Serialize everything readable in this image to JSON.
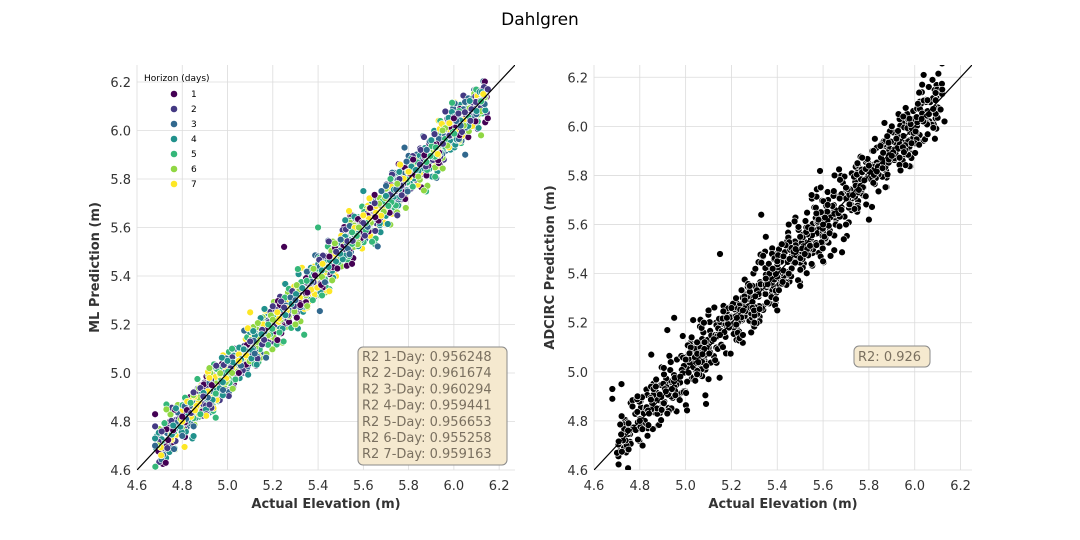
{
  "figure_title": "Dahlgren",
  "chart_data": [
    {
      "type": "scatter",
      "xlabel": "Actual Elevation (m)",
      "ylabel": "ML Prediction (m)",
      "xlim": [
        4.6,
        6.27
      ],
      "ylim": [
        4.6,
        6.27
      ],
      "xticks": [
        "4.6",
        "4.8",
        "5.0",
        "5.2",
        "5.4",
        "5.6",
        "5.8",
        "6.0",
        "6.2"
      ],
      "yticks": [
        "4.6",
        "4.8",
        "5.0",
        "5.2",
        "5.4",
        "5.6",
        "5.8",
        "6.0",
        "6.2"
      ],
      "grid": true,
      "reference_line": "y = x",
      "legend": {
        "title": "Horizon (days)",
        "placement": "top-left",
        "entries": [
          {
            "label": "1",
            "color": "#440154"
          },
          {
            "label": "2",
            "color": "#443983"
          },
          {
            "label": "3",
            "color": "#31688e"
          },
          {
            "label": "4",
            "color": "#21918c"
          },
          {
            "label": "5",
            "color": "#35b779"
          },
          {
            "label": "6",
            "color": "#90d743"
          },
          {
            "label": "7",
            "color": "#fde725"
          }
        ]
      },
      "annotation": {
        "placement": "bottom-right",
        "lines": [
          "R2 1-Day: 0.956248",
          "R2 2-Day: 0.961674",
          "R2 3-Day: 0.960294",
          "R2 4-Day: 0.959441",
          "R2 5-Day: 0.956653",
          "R2 6-Day: 0.955258",
          "R2 7-Day: 0.959163"
        ]
      },
      "sample_points": [
        [
          4.68,
          4.83
        ],
        [
          4.68,
          4.78
        ],
        [
          4.68,
          4.7
        ],
        [
          4.68,
          4.73
        ],
        [
          4.73,
          4.87
        ],
        [
          4.73,
          4.85
        ],
        [
          4.8,
          4.8
        ],
        [
          4.8,
          4.82
        ],
        [
          4.85,
          4.92
        ],
        [
          4.85,
          4.78
        ],
        [
          4.85,
          4.74
        ],
        [
          4.88,
          4.83
        ],
        [
          4.92,
          5.02
        ],
        [
          4.92,
          4.98
        ],
        [
          4.93,
          4.95
        ],
        [
          4.95,
          5.03
        ],
        [
          4.98,
          4.93
        ],
        [
          5.0,
          5.05
        ],
        [
          5.02,
          5.1
        ],
        [
          5.02,
          5.0
        ],
        [
          5.05,
          5.05
        ],
        [
          5.05,
          5.0
        ],
        [
          5.1,
          5.13
        ],
        [
          5.12,
          5.08
        ],
        [
          5.15,
          5.16
        ],
        [
          5.18,
          5.2
        ],
        [
          5.2,
          5.22
        ],
        [
          5.22,
          5.25
        ],
        [
          5.25,
          5.52
        ],
        [
          5.25,
          5.27
        ],
        [
          5.3,
          5.3
        ],
        [
          5.33,
          5.35
        ],
        [
          5.35,
          5.38
        ],
        [
          5.38,
          5.43
        ],
        [
          5.42,
          5.45
        ],
        [
          5.45,
          5.48
        ],
        [
          5.48,
          5.5
        ],
        [
          5.5,
          5.55
        ],
        [
          5.52,
          5.63
        ],
        [
          5.55,
          5.58
        ],
        [
          5.58,
          5.6
        ],
        [
          5.6,
          5.65
        ],
        [
          5.63,
          5.68
        ],
        [
          5.65,
          5.7
        ],
        [
          5.68,
          5.75
        ],
        [
          5.7,
          5.73
        ],
        [
          5.72,
          5.8
        ],
        [
          5.75,
          5.78
        ],
        [
          5.8,
          5.83
        ],
        [
          5.82,
          5.88
        ],
        [
          5.85,
          5.86
        ],
        [
          5.88,
          5.92
        ],
        [
          5.9,
          5.96
        ],
        [
          5.92,
          5.93
        ],
        [
          5.95,
          6.0
        ],
        [
          5.98,
          6.03
        ],
        [
          6.0,
          6.05
        ],
        [
          6.02,
          6.07
        ],
        [
          6.03,
          6.02
        ],
        [
          6.1,
          6.08
        ],
        [
          6.12,
          6.12
        ],
        [
          6.12,
          5.98
        ],
        [
          6.13,
          6.15
        ],
        [
          6.15,
          6.05
        ],
        [
          6.15,
          6.17
        ],
        [
          6.05,
          5.9
        ],
        [
          5.6,
          5.75
        ],
        [
          5.4,
          5.6
        ],
        [
          5.3,
          5.2
        ],
        [
          5.1,
          5.25
        ],
        [
          5.55,
          5.45
        ],
        [
          5.75,
          5.65
        ]
      ]
    },
    {
      "type": "scatter",
      "xlabel": "Actual Elevation (m)",
      "ylabel": "ADCIRC Prediction (m)",
      "xlim": [
        4.6,
        6.25
      ],
      "ylim": [
        4.6,
        6.25
      ],
      "xticks": [
        "4.6",
        "4.8",
        "5.0",
        "5.2",
        "5.4",
        "5.6",
        "5.8",
        "6.0",
        "6.2"
      ],
      "yticks": [
        "4.6",
        "4.8",
        "5.0",
        "5.2",
        "5.4",
        "5.6",
        "5.8",
        "6.0",
        "6.2"
      ],
      "grid": true,
      "reference_line": "y = x",
      "marker_color": "#000000",
      "annotation": {
        "placement": "bottom-right",
        "lines": [
          "R2: 0.926"
        ]
      },
      "sample_points": [
        [
          4.68,
          4.93
        ],
        [
          4.68,
          4.89
        ],
        [
          4.72,
          4.95
        ],
        [
          4.79,
          4.9
        ],
        [
          4.8,
          4.8
        ],
        [
          4.84,
          4.83
        ],
        [
          4.85,
          5.07
        ],
        [
          4.86,
          4.93
        ],
        [
          4.87,
          4.94
        ],
        [
          4.92,
          4.83
        ],
        [
          4.94,
          4.93
        ],
        [
          4.95,
          5.22
        ],
        [
          4.92,
          5.17
        ],
        [
          5.0,
          5.05
        ],
        [
          5.05,
          4.99
        ],
        [
          5.05,
          5.12
        ],
        [
          5.08,
          5.2
        ],
        [
          5.1,
          5.25
        ],
        [
          5.1,
          4.97
        ],
        [
          5.15,
          5.48
        ],
        [
          5.15,
          5.15
        ],
        [
          5.18,
          5.22
        ],
        [
          5.2,
          5.26
        ],
        [
          5.22,
          5.3
        ],
        [
          5.25,
          5.25
        ],
        [
          5.28,
          5.35
        ],
        [
          5.3,
          5.2
        ],
        [
          5.33,
          5.64
        ],
        [
          5.35,
          5.38
        ],
        [
          5.38,
          5.42
        ],
        [
          5.4,
          5.45
        ],
        [
          5.42,
          5.52
        ],
        [
          5.45,
          5.4
        ],
        [
          5.48,
          5.5
        ],
        [
          5.5,
          5.55
        ],
        [
          5.52,
          5.48
        ],
        [
          5.55,
          5.58
        ],
        [
          5.58,
          5.62
        ],
        [
          5.6,
          5.6
        ],
        [
          5.62,
          5.68
        ],
        [
          5.65,
          5.8
        ],
        [
          5.68,
          5.66
        ],
        [
          5.7,
          5.75
        ],
        [
          5.73,
          5.72
        ],
        [
          5.75,
          5.85
        ],
        [
          5.78,
          5.78
        ],
        [
          5.8,
          5.84
        ],
        [
          5.82,
          5.9
        ],
        [
          5.85,
          5.92
        ],
        [
          5.88,
          5.96
        ],
        [
          5.9,
          6.0
        ],
        [
          5.92,
          5.95
        ],
        [
          5.95,
          6.04
        ],
        [
          5.9,
          5.88
        ],
        [
          6.03,
          6.03
        ],
        [
          6.12,
          6.15
        ],
        [
          6.13,
          6.02
        ],
        [
          5.8,
          5.62
        ],
        [
          5.6,
          5.45
        ],
        [
          5.4,
          5.25
        ],
        [
          5.25,
          5.15
        ],
        [
          5.5,
          5.35
        ],
        [
          5.7,
          5.6
        ],
        [
          5.35,
          5.55
        ],
        [
          5.55,
          5.72
        ],
        [
          5.45,
          5.6
        ]
      ]
    }
  ]
}
